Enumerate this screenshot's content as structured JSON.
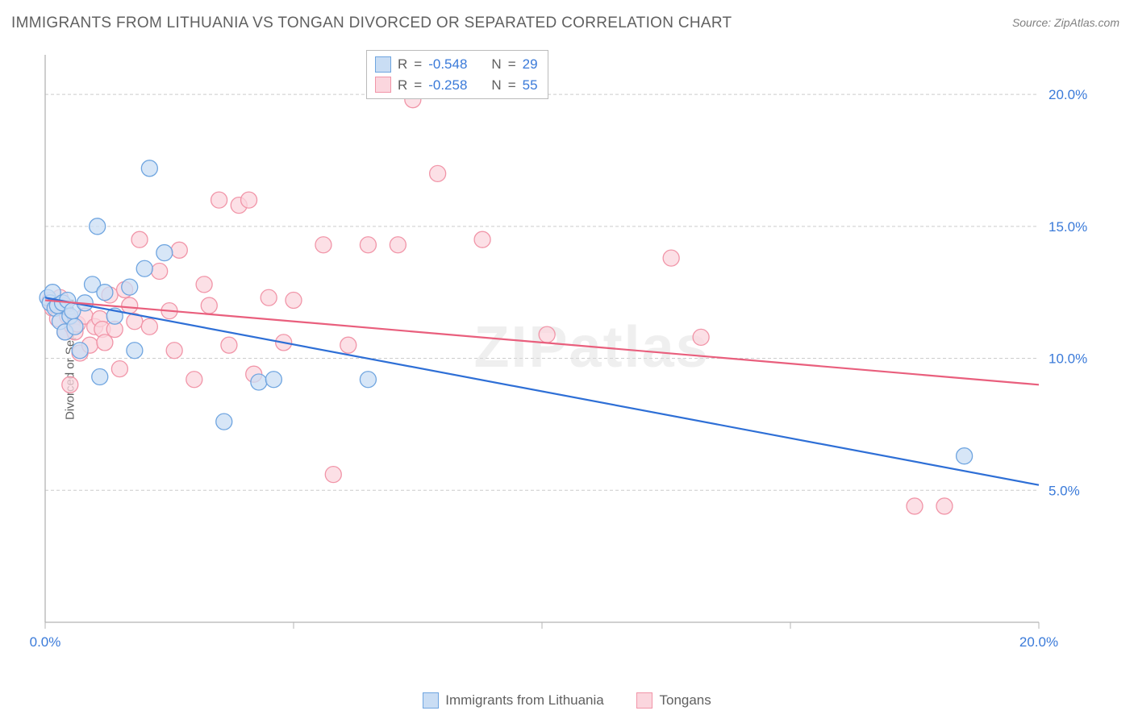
{
  "title": "IMMIGRANTS FROM LITHUANIA VS TONGAN DIVORCED OR SEPARATED CORRELATION CHART",
  "source": "Source: ZipAtlas.com",
  "y_axis_label": "Divorced or Separated",
  "watermark": "ZIPatlas",
  "chart": {
    "type": "scatter-with-trendlines",
    "background_color": "#ffffff",
    "grid_color": "#cccccc",
    "axis_color": "#b4b4b4",
    "xlim": [
      0,
      20
    ],
    "ylim": [
      0,
      21.5
    ],
    "x_ticks": [
      0,
      5,
      10,
      15,
      20
    ],
    "x_tick_labels": [
      "0.0%",
      "",
      "",
      "",
      "20.0%"
    ],
    "y_ticks": [
      5,
      10,
      15,
      20
    ],
    "y_tick_labels": [
      "5.0%",
      "10.0%",
      "15.0%",
      "20.0%"
    ],
    "marker_radius": 10,
    "marker_stroke_width": 1.3,
    "trend_line_width": 2.2,
    "title_fontsize": 19,
    "tick_fontsize": 17,
    "tick_label_color": "#3a7ad9"
  },
  "series": [
    {
      "key": "lithuania",
      "label": "Immigrants from Lithuania",
      "fill": "#c9ddf4",
      "stroke": "#6fa5e0",
      "trend_color": "#2e6fd6",
      "R": "-0.548",
      "N": "29",
      "trend": {
        "x1": 0,
        "y1": 12.3,
        "x2": 20,
        "y2": 5.2
      },
      "points": [
        [
          0.05,
          12.3
        ],
        [
          0.1,
          12.1
        ],
        [
          0.15,
          12.5
        ],
        [
          0.2,
          11.9
        ],
        [
          0.25,
          12.0
        ],
        [
          0.3,
          11.4
        ],
        [
          0.35,
          12.1
        ],
        [
          0.4,
          11.0
        ],
        [
          0.45,
          12.2
        ],
        [
          0.5,
          11.6
        ],
        [
          0.55,
          11.8
        ],
        [
          0.6,
          11.2
        ],
        [
          0.7,
          10.3
        ],
        [
          0.8,
          12.1
        ],
        [
          0.95,
          12.8
        ],
        [
          1.05,
          15.0
        ],
        [
          1.1,
          9.3
        ],
        [
          1.2,
          12.5
        ],
        [
          1.4,
          11.6
        ],
        [
          1.7,
          12.7
        ],
        [
          1.8,
          10.3
        ],
        [
          2.0,
          13.4
        ],
        [
          2.1,
          17.2
        ],
        [
          2.4,
          14.0
        ],
        [
          3.6,
          7.6
        ],
        [
          4.3,
          9.1
        ],
        [
          4.6,
          9.2
        ],
        [
          6.5,
          9.2
        ],
        [
          18.5,
          6.3
        ]
      ]
    },
    {
      "key": "tongans",
      "label": "Tongans",
      "fill": "#fbd6de",
      "stroke": "#f195a8",
      "trend_color": "#e95f7d",
      "R": "-0.258",
      "N": "55",
      "trend": {
        "x1": 0,
        "y1": 12.2,
        "x2": 20,
        "y2": 9.0
      },
      "points": [
        [
          0.1,
          12.2
        ],
        [
          0.15,
          11.9
        ],
        [
          0.2,
          12.0
        ],
        [
          0.25,
          11.5
        ],
        [
          0.3,
          12.3
        ],
        [
          0.35,
          12.0
        ],
        [
          0.4,
          11.0
        ],
        [
          0.45,
          11.6
        ],
        [
          0.5,
          9.0
        ],
        [
          0.55,
          11.2
        ],
        [
          0.6,
          11.0
        ],
        [
          0.65,
          11.3
        ],
        [
          0.7,
          10.2
        ],
        [
          0.8,
          11.6
        ],
        [
          0.9,
          10.5
        ],
        [
          1.0,
          11.2
        ],
        [
          1.1,
          11.5
        ],
        [
          1.15,
          11.1
        ],
        [
          1.2,
          10.6
        ],
        [
          1.3,
          12.4
        ],
        [
          1.4,
          11.1
        ],
        [
          1.5,
          9.6
        ],
        [
          1.6,
          12.6
        ],
        [
          1.7,
          12.0
        ],
        [
          1.8,
          11.4
        ],
        [
          1.9,
          14.5
        ],
        [
          2.1,
          11.2
        ],
        [
          2.3,
          13.3
        ],
        [
          2.5,
          11.8
        ],
        [
          2.6,
          10.3
        ],
        [
          2.7,
          14.1
        ],
        [
          3.0,
          9.2
        ],
        [
          3.3,
          12.0
        ],
        [
          3.5,
          16.0
        ],
        [
          3.7,
          10.5
        ],
        [
          3.9,
          15.8
        ],
        [
          4.1,
          16.0
        ],
        [
          4.5,
          12.3
        ],
        [
          4.8,
          10.6
        ],
        [
          5.0,
          12.2
        ],
        [
          5.6,
          14.3
        ],
        [
          5.8,
          5.6
        ],
        [
          6.1,
          10.5
        ],
        [
          6.5,
          14.3
        ],
        [
          7.1,
          14.3
        ],
        [
          7.4,
          19.8
        ],
        [
          7.9,
          17.0
        ],
        [
          8.8,
          14.5
        ],
        [
          10.1,
          10.9
        ],
        [
          12.6,
          13.8
        ],
        [
          13.2,
          10.8
        ],
        [
          17.5,
          4.4
        ],
        [
          18.1,
          4.4
        ],
        [
          3.2,
          12.8
        ],
        [
          4.2,
          9.4
        ]
      ]
    }
  ],
  "stats_legend": {
    "R_label": "R",
    "N_label": "N",
    "equals": "="
  }
}
